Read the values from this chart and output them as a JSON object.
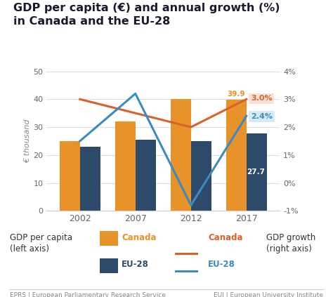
{
  "title_line1": "GDP per capita (€) and annual growth (%)",
  "title_line2": "in Canada and the EU-28",
  "years": [
    2002,
    2007,
    2012,
    2017
  ],
  "canada_gdp": [
    25,
    32,
    40,
    39.9
  ],
  "eu28_gdp": [
    23,
    25.5,
    25,
    27.7
  ],
  "canada_growth_pct": [
    3.0,
    2.5,
    2.0,
    3.0
  ],
  "eu28_growth_pct": [
    1.5,
    3.2,
    -0.8,
    2.4
  ],
  "canada_gdp_color": "#E8922A",
  "eu28_gdp_color": "#2E4A6B",
  "canada_line_color": "#D9622A",
  "eu28_line_color": "#3B8BBE",
  "background_color": "#ffffff",
  "annotation_canada_2017": "39.9",
  "annotation_eu28_2017": "27.7",
  "annotation_growth_canada": "3.0%",
  "annotation_growth_eu28": "2.4%",
  "footer_left": "EPRS | European Parliamentary Research Service",
  "footer_right": "EUI | European University Institute",
  "left_ylim": [
    0,
    50
  ],
  "right_ylim": [
    -1,
    4
  ],
  "left_yticks": [
    0,
    10,
    20,
    30,
    40,
    50
  ],
  "right_yticks": [
    -1,
    0,
    1,
    2,
    3,
    4
  ],
  "right_yticklabels": [
    "-1%",
    "0%",
    "1%",
    "2%",
    "3%",
    "4%"
  ],
  "left_ylabel": "€ thousand"
}
